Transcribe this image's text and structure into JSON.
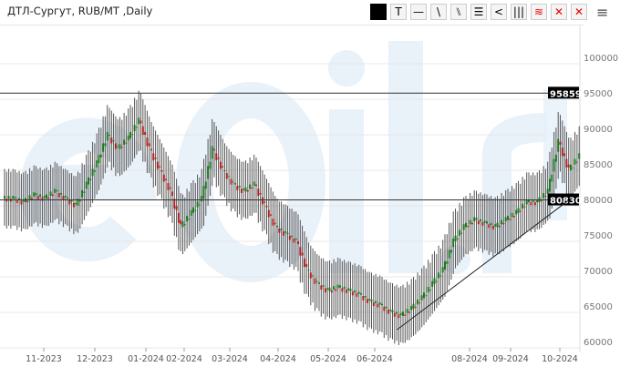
{
  "header": {
    "title": "ДТЛ-Сургут, RUB/MT ,Daily"
  },
  "toolbar": [
    {
      "name": "color-swatch",
      "glyph": "",
      "style": "black"
    },
    {
      "name": "text-tool",
      "glyph": "T"
    },
    {
      "name": "horizontal-line-tool",
      "glyph": "—"
    },
    {
      "name": "trend-line-tool",
      "glyph": "\\"
    },
    {
      "name": "parallel-channel-tool",
      "glyph": "⑊"
    },
    {
      "name": "fibonacci-tool",
      "glyph": "☰"
    },
    {
      "name": "fan-tool",
      "glyph": "<"
    },
    {
      "name": "vertical-lines-tool",
      "glyph": "|||"
    },
    {
      "name": "layers-tool",
      "glyph": "≋",
      "style": "red"
    },
    {
      "name": "delete-tool",
      "glyph": "✕",
      "style": "red"
    },
    {
      "name": "delete-all-tool",
      "glyph": "✕",
      "style": "red"
    }
  ],
  "menu_icon": "hamburger-icon",
  "watermark": "eOil.ru",
  "chart_data": {
    "type": "candlestick",
    "title": "ДТЛ-Сургут, RUB/MT ,Daily",
    "ylim": [
      60000,
      100000
    ],
    "yticks": [
      100000,
      95000,
      90000,
      85000,
      80000,
      75000,
      70000,
      65000,
      60000
    ],
    "ytick_labels": [
      "100000",
      "95000",
      "90000",
      "85000",
      "80000",
      "75000",
      "70000",
      "65000",
      "60000"
    ],
    "xtick_labels": [
      "11-2023",
      "12-2023",
      "01-2024",
      "02-2024",
      "03-2024",
      "04-2024",
      "05-2024",
      "06-2024",
      "08-2024",
      "09-2024",
      "10-2024"
    ],
    "weekly_closes": [
      81000,
      80500,
      81500,
      81000,
      82000,
      81000,
      80000,
      83000,
      86000,
      90000,
      88000,
      89500,
      92000,
      88000,
      85000,
      82000,
      77000,
      79000,
      81000,
      88000,
      85000,
      83000,
      82000,
      83000,
      80000,
      77000,
      76000,
      75000,
      71000,
      69000,
      68000,
      68500,
      68000,
      67500,
      66500,
      66000,
      65000,
      64500,
      65500,
      67000,
      69000,
      71000,
      75000,
      77000,
      78000,
      77500,
      77000,
      78000,
      79000,
      80500,
      80500,
      82000,
      89000,
      85000,
      87000
    ],
    "first_week": "2023-10-09",
    "horizontal_levels": [
      {
        "value": 95859,
        "label": "95859"
      },
      {
        "value": 80830,
        "label": "80830"
      }
    ],
    "trend_line": {
      "from": {
        "date": "2024-06-24",
        "value": 62560
      },
      "to": {
        "date": "2024-10-16",
        "value": 80700
      }
    },
    "colors": {
      "up": "#1a7a1a",
      "down": "#b22222",
      "wick": "#555555",
      "level_label_bg": "#000000",
      "highlight": "#e6f0fa",
      "watermark": "#dbe8f5"
    },
    "grid": true
  }
}
